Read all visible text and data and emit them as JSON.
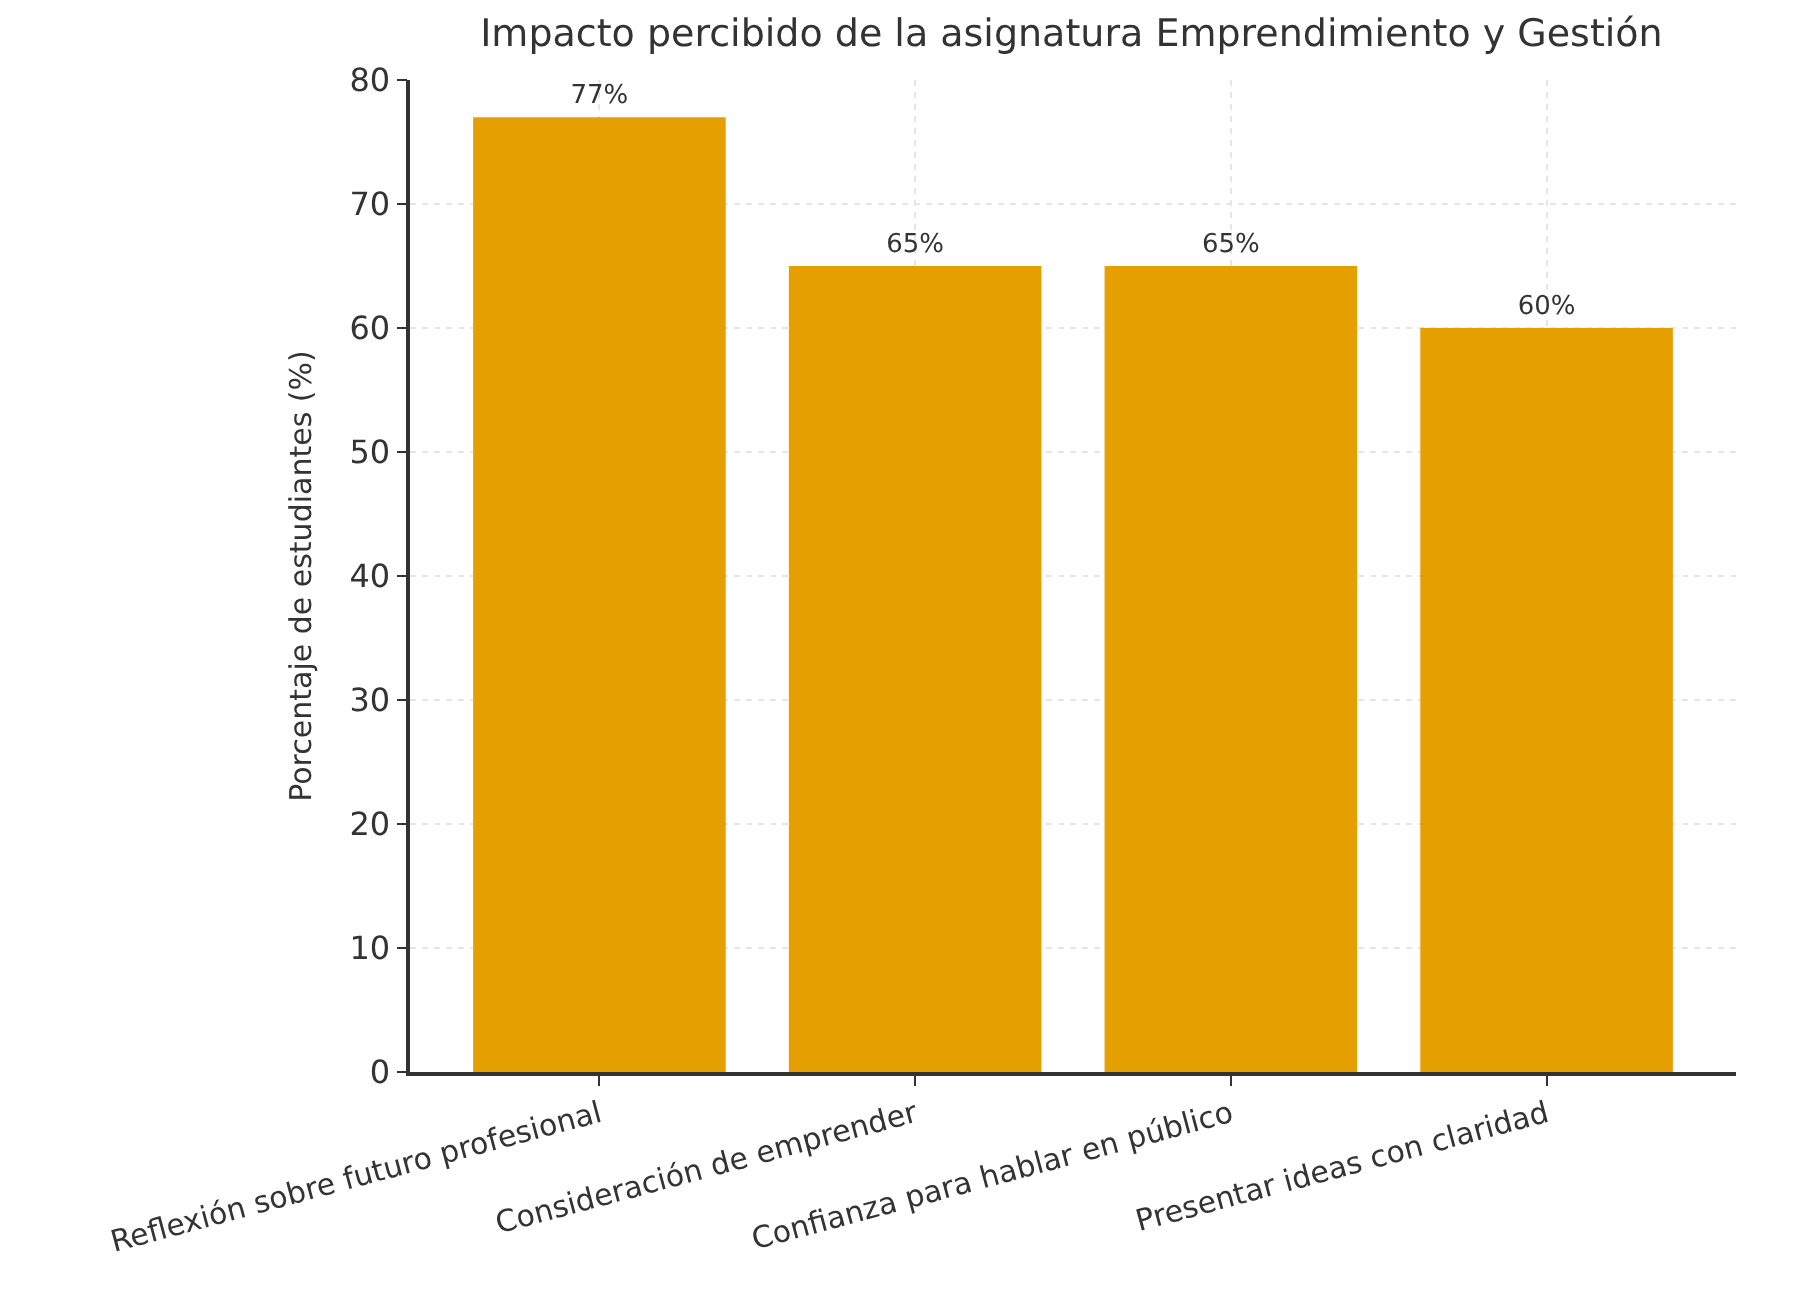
{
  "chart_data": {
    "type": "bar",
    "title": "Impacto percibido de la asignatura Emprendimiento y Gestión",
    "ylabel": "Porcentaje de estudiantes (%)",
    "categories": [
      "Reflexión sobre futuro profesional",
      "Consideración de emprender",
      "Confianza para hablar en público",
      "Presentar ideas con claridad"
    ],
    "values": [
      77,
      65,
      65,
      60
    ],
    "color": "#e69f00",
    "value_labels": [
      "77%",
      "65%",
      "65%",
      "60%"
    ],
    "ylim": [
      0,
      80
    ],
    "yticks": [
      0,
      10,
      20,
      30,
      40,
      50,
      60,
      70,
      80
    ],
    "grid": true
  }
}
